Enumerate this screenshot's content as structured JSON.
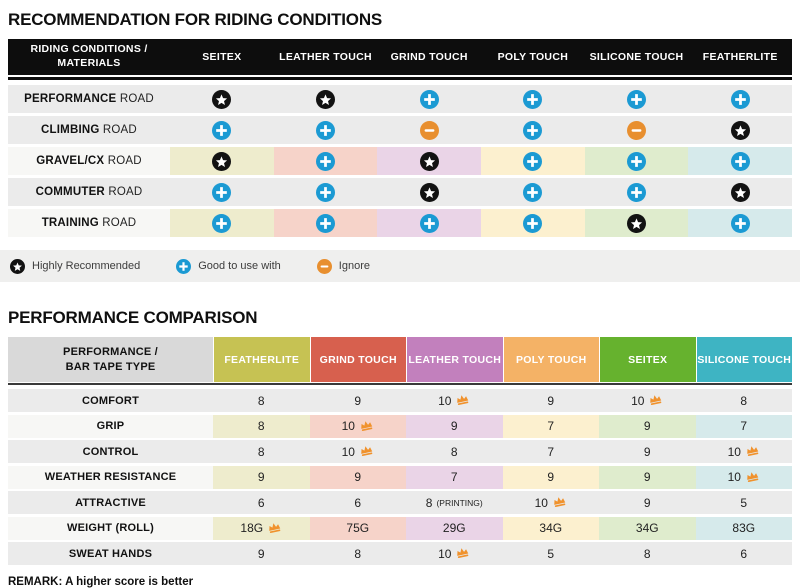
{
  "recommendation": {
    "title": "RECOMMENDATION FOR RIDING CONDITIONS",
    "corner": [
      "RIDING CONDITIONS /",
      "MATERIALS"
    ],
    "columns": [
      "SEITEX",
      "LEATHER TOUCH",
      "GRIND TOUCH",
      "POLY TOUCH",
      "SILICONE TOUCH",
      "FEATHERLITE"
    ],
    "rows": [
      {
        "name": "PERFORMANCE",
        "suffix": "ROAD",
        "tinted": false,
        "icons": [
          "star",
          "star",
          "plus",
          "plus",
          "plus",
          "plus"
        ]
      },
      {
        "name": "CLIMBING",
        "suffix": "ROAD",
        "tinted": false,
        "icons": [
          "plus",
          "plus",
          "minus",
          "plus",
          "minus",
          "star"
        ]
      },
      {
        "name": "GRAVEL/CX",
        "suffix": "ROAD",
        "tinted": true,
        "icons": [
          "star",
          "plus",
          "star",
          "plus",
          "plus",
          "plus"
        ]
      },
      {
        "name": "COMMUTER",
        "suffix": "ROAD",
        "tinted": false,
        "icons": [
          "plus",
          "plus",
          "star",
          "plus",
          "plus",
          "star"
        ]
      },
      {
        "name": "TRAINING",
        "suffix": "ROAD",
        "tinted": true,
        "icons": [
          "plus",
          "plus",
          "plus",
          "plus",
          "star",
          "plus"
        ]
      }
    ],
    "legend": [
      {
        "icon": "star",
        "label": "Highly Recommended"
      },
      {
        "icon": "plus",
        "label": "Good to use with"
      },
      {
        "icon": "minus",
        "label": "Ignore"
      }
    ]
  },
  "comparison": {
    "title": "PERFORMANCE COMPARISON",
    "corner": [
      "PERFORMANCE /",
      "BAR TAPE TYPE"
    ],
    "columns": [
      {
        "label": "FEATHERLITE",
        "color": "#c6c253"
      },
      {
        "label": "GRIND TOUCH",
        "color": "#d7604e"
      },
      {
        "label": "LEATHER TOUCH",
        "color": "#c280bd"
      },
      {
        "label": "POLY TOUCH",
        "color": "#f4b266"
      },
      {
        "label": "SEITEX",
        "color": "#66b22e"
      },
      {
        "label": "SILICONE TOUCH",
        "color": "#3eb4c3"
      }
    ],
    "rows": [
      {
        "label": "COMFORT",
        "tinted": false,
        "cells": [
          {
            "value": "8"
          },
          {
            "value": "9"
          },
          {
            "value": "10",
            "crown": true
          },
          {
            "value": "9"
          },
          {
            "value": "10",
            "crown": true
          },
          {
            "value": "8"
          }
        ]
      },
      {
        "label": "GRIP",
        "tinted": true,
        "cells": [
          {
            "value": "8"
          },
          {
            "value": "10",
            "crown": true
          },
          {
            "value": "9"
          },
          {
            "value": "7"
          },
          {
            "value": "9"
          },
          {
            "value": "7"
          }
        ]
      },
      {
        "label": "CONTROL",
        "tinted": false,
        "cells": [
          {
            "value": "8"
          },
          {
            "value": "10",
            "crown": true
          },
          {
            "value": "8"
          },
          {
            "value": "7"
          },
          {
            "value": "9"
          },
          {
            "value": "10",
            "crown": true
          }
        ]
      },
      {
        "label": "WEATHER RESISTANCE",
        "tinted": true,
        "cells": [
          {
            "value": "9"
          },
          {
            "value": "9"
          },
          {
            "value": "7"
          },
          {
            "value": "9"
          },
          {
            "value": "9"
          },
          {
            "value": "10",
            "crown": true
          }
        ]
      },
      {
        "label": "ATTRACTIVE",
        "tinted": false,
        "cells": [
          {
            "value": "6"
          },
          {
            "value": "6"
          },
          {
            "value": "8",
            "note": "(PRINTING)"
          },
          {
            "value": "10",
            "crown": true
          },
          {
            "value": "9"
          },
          {
            "value": "5"
          }
        ]
      },
      {
        "label": "WEIGHT (ROLL)",
        "tinted": true,
        "cells": [
          {
            "value": "18G",
            "crown": true
          },
          {
            "value": "75G"
          },
          {
            "value": "29G"
          },
          {
            "value": "34G"
          },
          {
            "value": "34G"
          },
          {
            "value": "83G"
          }
        ]
      },
      {
        "label": "SWEAT HANDS",
        "tinted": false,
        "cells": [
          {
            "value": "9"
          },
          {
            "value": "8"
          },
          {
            "value": "10",
            "crown": true
          },
          {
            "value": "5"
          },
          {
            "value": "8"
          },
          {
            "value": "6"
          }
        ]
      }
    ],
    "remark": "REMARK: A higher score is better"
  },
  "colors": {
    "column_tints": [
      "#eeeccd",
      "#f6d3c9",
      "#ead4e7",
      "#fcf0cf",
      "#dfeccd",
      "#d6eaeb"
    ],
    "gray_row": "#ebebeb",
    "tinted_label": "#f7f7f5",
    "header_black": "#0d0d0d",
    "corner_gray": "#d9d9d9",
    "star_icon": "#121212",
    "plus_icon": "#1b9ad3",
    "minus_icon": "#e88f2f",
    "crown_icon": "#f0922d",
    "legend_strip": "#efefee"
  }
}
